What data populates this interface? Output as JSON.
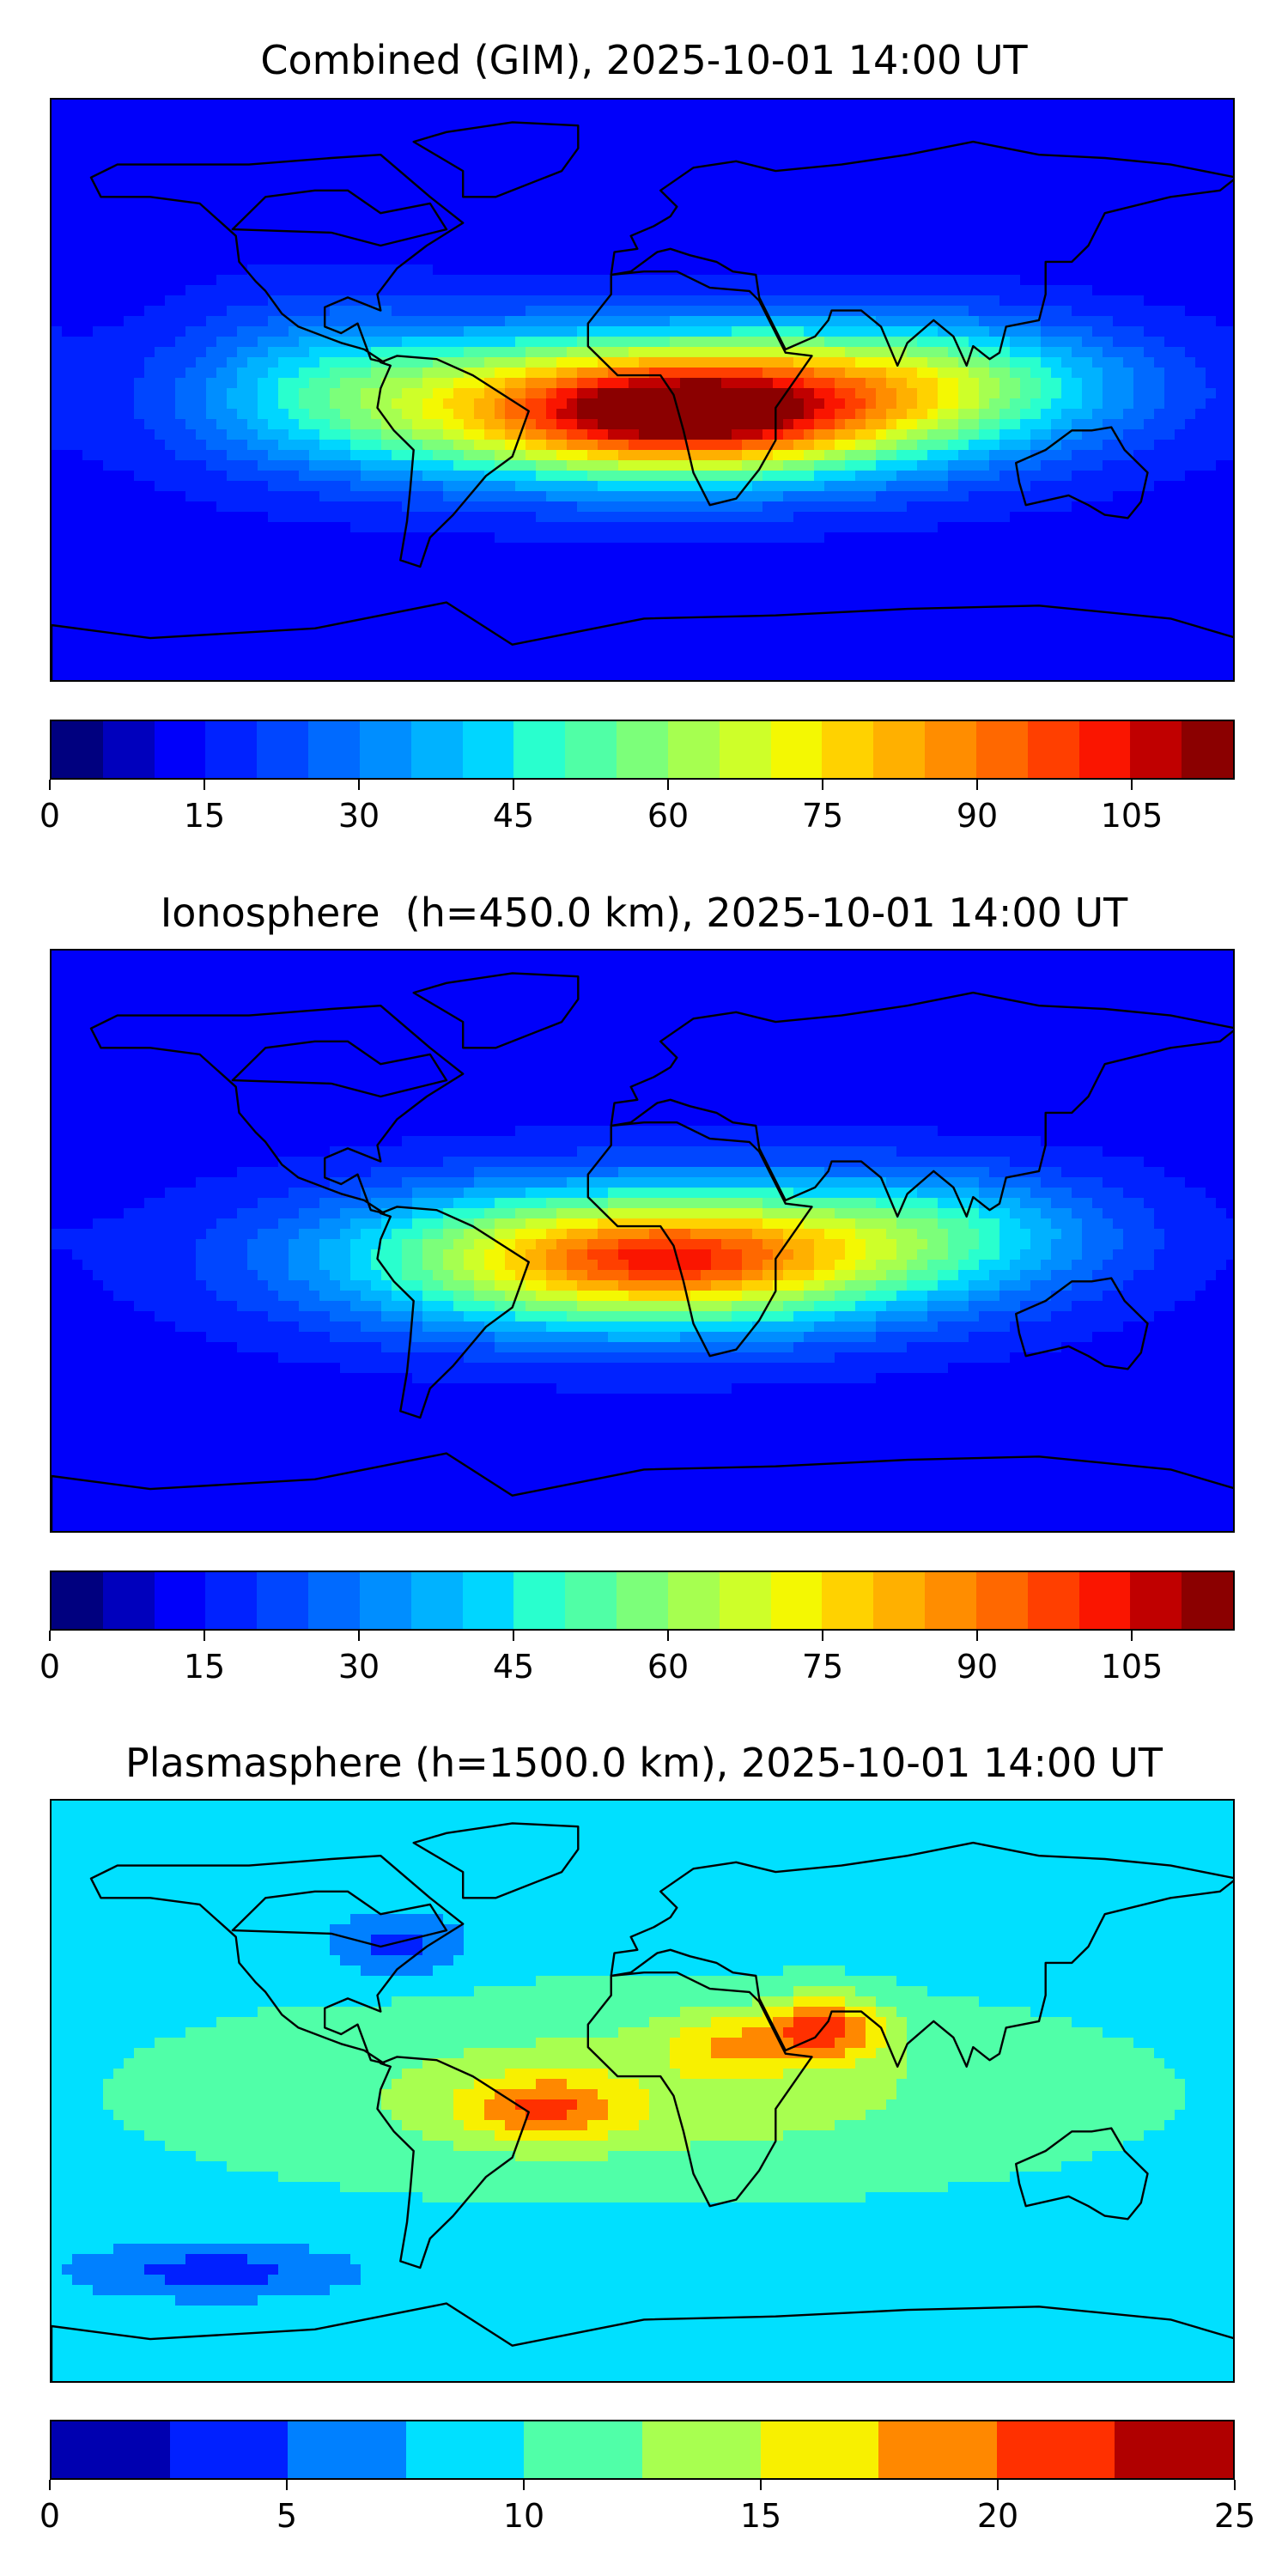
{
  "panels": [
    {
      "title": "Combined (GIM), 2025-10-01 14:00 UT",
      "colorbar": {
        "colors": [
          "#00007f",
          "#0000bd",
          "#0000fa",
          "#0022ff",
          "#0046ff",
          "#006aff",
          "#008eff",
          "#00b2ff",
          "#00d6ff",
          "#29ffce",
          "#50ffa6",
          "#7cff7a",
          "#a6ff50",
          "#ceff29",
          "#f4f802",
          "#ffd200",
          "#ffb000",
          "#ff8d00",
          "#ff6800",
          "#ff3f00",
          "#fa1500",
          "#c00000",
          "#8b0000"
        ],
        "ticks": [
          "0",
          "15",
          "30",
          "45",
          "60",
          "75",
          "90",
          "105"
        ],
        "tick_values": [
          0,
          15,
          30,
          45,
          60,
          75,
          90,
          105
        ],
        "vmin": 0,
        "vmax": 115
      },
      "field": {
        "background_level": 2,
        "blobs": [
          {
            "lon": 5,
            "lat": -5,
            "sx": 95,
            "sy": 22,
            "amp": 18
          },
          {
            "lon": 15,
            "lat": -8,
            "sx": 45,
            "sy": 14,
            "amp": 5
          },
          {
            "lon": 90,
            "lat": 5,
            "sx": 60,
            "sy": 18,
            "amp": 5
          },
          {
            "lon": -100,
            "lat": 5,
            "sx": 40,
            "sy": 25,
            "amp": 3
          }
        ]
      }
    },
    {
      "title": "Ionosphere  (h=450.0 km), 2025-10-01 14:00 UT",
      "colorbar": {
        "colors": [
          "#00007f",
          "#0000bd",
          "#0000fa",
          "#0022ff",
          "#0046ff",
          "#006aff",
          "#008eff",
          "#00b2ff",
          "#00d6ff",
          "#29ffce",
          "#50ffa6",
          "#7cff7a",
          "#a6ff50",
          "#ceff29",
          "#f4f802",
          "#ffd200",
          "#ffb000",
          "#ff8d00",
          "#ff6800",
          "#ff3f00",
          "#fa1500",
          "#c00000",
          "#8b0000"
        ],
        "ticks": [
          "0",
          "15",
          "30",
          "45",
          "60",
          "75",
          "90",
          "105"
        ],
        "tick_values": [
          0,
          15,
          30,
          45,
          60,
          75,
          90,
          105
        ],
        "vmin": 0,
        "vmax": 115
      },
      "field": {
        "background_level": 2,
        "blobs": [
          {
            "lon": 0,
            "lat": -5,
            "sx": 90,
            "sy": 22,
            "amp": 15
          },
          {
            "lon": 10,
            "lat": -5,
            "sx": 40,
            "sy": 12,
            "amp": 3
          },
          {
            "lon": 90,
            "lat": 5,
            "sx": 55,
            "sy": 18,
            "amp": 4
          }
        ]
      }
    },
    {
      "title": "Plasmasphere (h=1500.0 km), 2025-10-01 14:00 UT",
      "colorbar": {
        "colors": [
          "#0000b0",
          "#0020ff",
          "#0080ff",
          "#00e0ff",
          "#50ffa8",
          "#a8ff50",
          "#f8f000",
          "#ff8800",
          "#ff3000",
          "#b00000"
        ],
        "ticks": [
          "0",
          "5",
          "10",
          "15",
          "20",
          "25"
        ],
        "tick_values": [
          0,
          5,
          10,
          15,
          20,
          25
        ],
        "vmin": 0,
        "vmax": 25
      },
      "field": {
        "background_level": 3,
        "blobs": [
          {
            "lon": 0,
            "lat": 0,
            "sx": 140,
            "sy": 30,
            "amp": 2
          },
          {
            "lon": 55,
            "lat": 20,
            "sx": 18,
            "sy": 10,
            "amp": 4
          },
          {
            "lon": -30,
            "lat": -5,
            "sx": 25,
            "sy": 10,
            "amp": 3
          },
          {
            "lon": 25,
            "lat": 15,
            "sx": 20,
            "sy": 10,
            "amp": 2
          },
          {
            "lon": -75,
            "lat": 45,
            "sx": 20,
            "sy": 10,
            "amp": -2
          },
          {
            "lon": -130,
            "lat": -55,
            "sx": 40,
            "sy": 8,
            "amp": -2
          }
        ]
      }
    }
  ]
}
